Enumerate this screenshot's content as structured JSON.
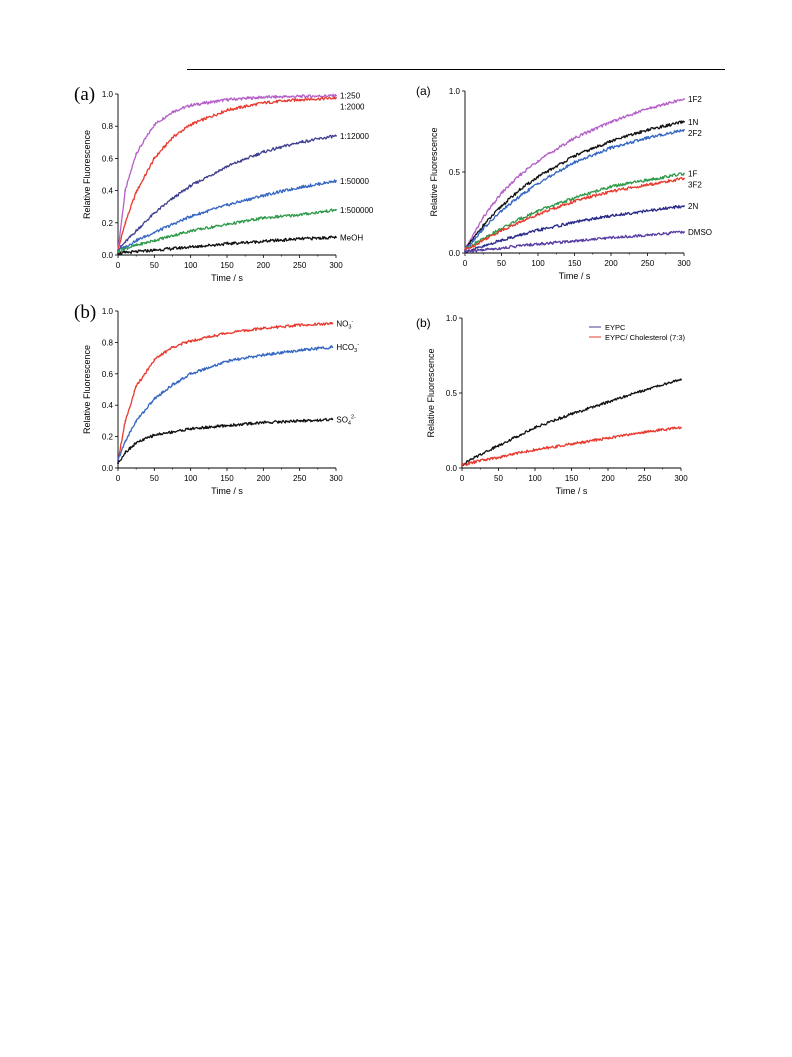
{
  "chart_data": [
    {
      "id": "ul",
      "type": "line",
      "panel_label": "(a)",
      "title": "",
      "xlabel": "Time / s",
      "ylabel": "Relative Fluorescence",
      "xlim": [
        0,
        300
      ],
      "ylim": [
        0,
        1.0
      ],
      "xticks": [
        "0",
        "50",
        "100",
        "150",
        "200",
        "250",
        "300"
      ],
      "yticks": [
        "0.0",
        "0.2",
        "0.4",
        "0.6",
        "0.8",
        "1.0"
      ],
      "series": [
        {
          "name": "1:250",
          "color": "#b45fc8",
          "x": [
            0,
            10,
            25,
            50,
            75,
            100,
            150,
            200,
            250,
            300
          ],
          "y": [
            0.03,
            0.4,
            0.63,
            0.81,
            0.89,
            0.93,
            0.965,
            0.98,
            0.985,
            0.99
          ]
        },
        {
          "name": "1:2000",
          "color": "#e83a2f",
          "x": [
            0,
            10,
            25,
            50,
            75,
            100,
            150,
            200,
            250,
            300
          ],
          "y": [
            0.03,
            0.2,
            0.39,
            0.6,
            0.73,
            0.81,
            0.9,
            0.945,
            0.965,
            0.975
          ]
        },
        {
          "name": "1:12000",
          "color": "#3f3f8f",
          "x": [
            0,
            10,
            25,
            50,
            75,
            100,
            150,
            200,
            250,
            300
          ],
          "y": [
            0.03,
            0.08,
            0.15,
            0.26,
            0.35,
            0.43,
            0.55,
            0.64,
            0.7,
            0.74
          ]
        },
        {
          "name": "1:50000",
          "color": "#3466c2",
          "x": [
            0,
            10,
            25,
            50,
            75,
            100,
            150,
            200,
            250,
            300
          ],
          "y": [
            0.03,
            0.05,
            0.09,
            0.14,
            0.19,
            0.24,
            0.31,
            0.37,
            0.42,
            0.46
          ]
        },
        {
          "name": "1:500000",
          "color": "#2f9a4a",
          "x": [
            0,
            10,
            25,
            50,
            75,
            100,
            150,
            200,
            250,
            300
          ],
          "y": [
            0.02,
            0.04,
            0.06,
            0.09,
            0.12,
            0.15,
            0.19,
            0.23,
            0.25,
            0.28
          ]
        },
        {
          "name": "MeOH",
          "color": "#111111",
          "x": [
            0,
            10,
            25,
            50,
            75,
            100,
            150,
            200,
            250,
            300
          ],
          "y": [
            0.01,
            0.015,
            0.02,
            0.03,
            0.04,
            0.05,
            0.07,
            0.085,
            0.1,
            0.11
          ]
        }
      ]
    },
    {
      "id": "ur",
      "type": "line",
      "panel_label": "(a)",
      "title": "",
      "xlabel": "Time / s",
      "ylabel": "Relative Fluorescence",
      "xlim": [
        0,
        300
      ],
      "ylim": [
        0,
        1.0
      ],
      "xticks": [
        "0",
        "50",
        "100",
        "150",
        "200",
        "250",
        "300"
      ],
      "yticks": [
        "0.0",
        "0.5",
        "1.0"
      ],
      "series": [
        {
          "name": "1F2",
          "color": "#b45fc8",
          "x": [
            0,
            10,
            25,
            50,
            75,
            100,
            150,
            200,
            250,
            300
          ],
          "y": [
            0.02,
            0.1,
            0.22,
            0.37,
            0.48,
            0.57,
            0.71,
            0.81,
            0.89,
            0.95
          ]
        },
        {
          "name": "1N",
          "color": "#111111",
          "x": [
            0,
            10,
            25,
            50,
            75,
            100,
            150,
            200,
            250,
            300
          ],
          "y": [
            0.02,
            0.08,
            0.17,
            0.29,
            0.39,
            0.47,
            0.6,
            0.69,
            0.76,
            0.81
          ]
        },
        {
          "name": "2F2",
          "color": "#3466c2",
          "x": [
            0,
            10,
            25,
            50,
            75,
            100,
            150,
            200,
            250,
            300
          ],
          "y": [
            0.02,
            0.07,
            0.15,
            0.26,
            0.35,
            0.43,
            0.56,
            0.65,
            0.71,
            0.76
          ]
        },
        {
          "name": "1F",
          "color": "#2f9a4a",
          "x": [
            0,
            10,
            25,
            50,
            75,
            100,
            150,
            200,
            250,
            300
          ],
          "y": [
            0.02,
            0.05,
            0.09,
            0.15,
            0.21,
            0.26,
            0.34,
            0.41,
            0.45,
            0.49
          ]
        },
        {
          "name": "3F2",
          "color": "#e83a2f",
          "x": [
            0,
            10,
            25,
            50,
            75,
            100,
            150,
            200,
            250,
            300
          ],
          "y": [
            0.02,
            0.04,
            0.08,
            0.14,
            0.19,
            0.24,
            0.32,
            0.38,
            0.42,
            0.46
          ]
        },
        {
          "name": "2N",
          "color": "#2a2a8a",
          "x": [
            0,
            10,
            25,
            50,
            75,
            100,
            150,
            200,
            250,
            300
          ],
          "y": [
            0.01,
            0.02,
            0.04,
            0.08,
            0.11,
            0.14,
            0.19,
            0.23,
            0.26,
            0.29
          ]
        },
        {
          "name": "DMSO",
          "color": "#5a3ea6",
          "x": [
            0,
            10,
            25,
            50,
            75,
            100,
            150,
            200,
            250,
            300
          ],
          "y": [
            0.01,
            0.012,
            0.02,
            0.03,
            0.045,
            0.055,
            0.075,
            0.095,
            0.11,
            0.13
          ]
        }
      ]
    },
    {
      "id": "ll",
      "type": "line",
      "panel_label": "(b)",
      "title": "",
      "xlabel": "Time / s",
      "ylabel": "Relative Fluorescence",
      "xlim": [
        0,
        300
      ],
      "ylim": [
        0,
        1.0
      ],
      "xticks": [
        "0",
        "50",
        "100",
        "150",
        "200",
        "250",
        "300"
      ],
      "yticks": [
        "0.0",
        "0.2",
        "0.4",
        "0.6",
        "0.8",
        "1.0"
      ],
      "series": [
        {
          "name": "NO3-",
          "label_main": "NO",
          "label_sub": "3",
          "label_sup": "-",
          "color": "#e83a2f",
          "x": [
            0,
            10,
            25,
            50,
            75,
            100,
            150,
            200,
            250,
            295
          ],
          "y": [
            0.05,
            0.3,
            0.52,
            0.69,
            0.77,
            0.81,
            0.86,
            0.89,
            0.91,
            0.92
          ]
        },
        {
          "name": "HCO3-",
          "label_main": "HCO",
          "label_sub": "3",
          "label_sup": "-",
          "color": "#3466c2",
          "x": [
            0,
            10,
            25,
            50,
            75,
            100,
            150,
            200,
            250,
            295
          ],
          "y": [
            0.05,
            0.17,
            0.3,
            0.44,
            0.53,
            0.6,
            0.68,
            0.72,
            0.75,
            0.77
          ]
        },
        {
          "name": "SO4 2-",
          "label_main": "SO",
          "label_sub": "4",
          "label_sup": "2-",
          "color": "#111111",
          "x": [
            0,
            10,
            25,
            50,
            75,
            100,
            150,
            200,
            250,
            295
          ],
          "y": [
            0.03,
            0.1,
            0.16,
            0.21,
            0.23,
            0.25,
            0.27,
            0.29,
            0.3,
            0.31
          ]
        }
      ]
    },
    {
      "id": "lr",
      "type": "line",
      "panel_label": "(b)",
      "title": "",
      "xlabel": "Time / s",
      "ylabel": "Relative Fluorescence",
      "xlim": [
        0,
        300
      ],
      "ylim": [
        0,
        1.0
      ],
      "xticks": [
        "0",
        "50",
        "100",
        "150",
        "200",
        "250",
        "300"
      ],
      "yticks": [
        "0.0",
        "0.5",
        "1.0"
      ],
      "legend_position": "top-right",
      "series": [
        {
          "name": "EYPC",
          "color": "#111111",
          "legend_color": "#3f3f8f",
          "x": [
            0,
            10,
            25,
            50,
            75,
            100,
            150,
            200,
            250,
            300
          ],
          "y": [
            0.02,
            0.05,
            0.09,
            0.15,
            0.21,
            0.27,
            0.36,
            0.44,
            0.52,
            0.59
          ]
        },
        {
          "name": "EYPC/ Cholesterol (7:3)",
          "color": "#e83a2f",
          "legend_color": "#e83a2f",
          "x": [
            0,
            10,
            25,
            50,
            75,
            100,
            150,
            200,
            250,
            300
          ],
          "y": [
            0.02,
            0.03,
            0.05,
            0.07,
            0.1,
            0.12,
            0.16,
            0.2,
            0.24,
            0.27
          ]
        }
      ]
    }
  ]
}
